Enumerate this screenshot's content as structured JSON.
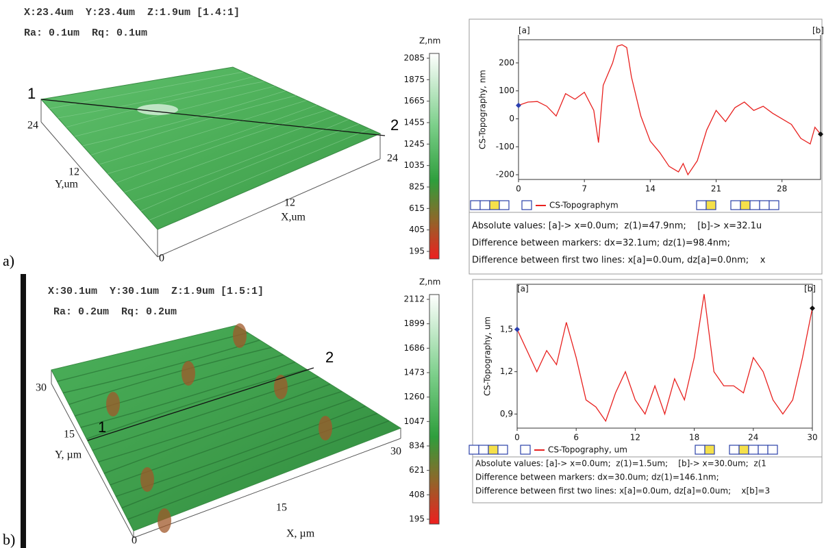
{
  "panels": [
    {
      "tag": "a)",
      "header": [
        "X:23.4um  Y:23.4um  Z:1.9um [1.4:1]",
        "Ra: 0.1um  Rq: 0.1um"
      ],
      "surface": {
        "labels": [
          "1",
          "2",
          "24",
          "12",
          "Y,um",
          "24",
          "12",
          "X,um",
          "0"
        ]
      },
      "colorbar": {
        "title": "Z,nm",
        "ticks": [
          2085,
          1875,
          1665,
          1455,
          1245,
          1035,
          825,
          615,
          405,
          195
        ]
      },
      "profile": {
        "type": "line",
        "color": "#e8201e",
        "marker_a": "[a]",
        "marker_b": "[b]",
        "ylabel": "CS-Topography, nm",
        "x": [
          0,
          1,
          2,
          3,
          4,
          5,
          6,
          7,
          8,
          8.5,
          9,
          10,
          10.5,
          11,
          11.5,
          12,
          13,
          14,
          15,
          16,
          17,
          17.5,
          18,
          19,
          20,
          21,
          22,
          23,
          24,
          25,
          26,
          27,
          28,
          29,
          30,
          31,
          31.5,
          32.1
        ],
        "values": [
          48,
          60,
          62,
          45,
          10,
          90,
          70,
          95,
          30,
          -85,
          120,
          200,
          260,
          265,
          255,
          150,
          10,
          -80,
          -120,
          -170,
          -190,
          -160,
          -200,
          -150,
          -40,
          30,
          -10,
          40,
          60,
          30,
          45,
          20,
          0,
          -20,
          -70,
          -90,
          -30,
          -55
        ],
        "xlim": [
          0,
          32.1
        ],
        "ylim": [
          -217,
          283
        ],
        "xticks": [
          0,
          7,
          14,
          21,
          28
        ],
        "yticks": [
          200,
          100,
          0,
          -100,
          -200
        ],
        "legend": "CS-Topographym"
      },
      "info": [
        "Absolute values: [a]-> x=0.0um;  z(1)=47.9nm;    [b]-> x=32.1u",
        "Difference between markers: dx=32.1um; dz(1)=98.4nm;",
        "Difference between first two lines: x[a]=0.0um, dz[a]=0.0nm;    x"
      ]
    },
    {
      "tag": "b)",
      "header": [
        "X:30.1um  Y:30.1um  Z:1.9um [1.5:1]",
        "Ra: 0.2um  Rq: 0.2um"
      ],
      "surface": {
        "labels": [
          "2",
          "1",
          "30",
          "15",
          "Y, µm",
          "30",
          "15",
          "X, µm",
          "0"
        ]
      },
      "colorbar": {
        "title": "Z,nm",
        "ticks": [
          2112,
          1899,
          1686,
          1473,
          1260,
          1047,
          834,
          621,
          408,
          195
        ]
      },
      "profile": {
        "type": "line",
        "color": "#e8201e",
        "marker_a": "[a]",
        "marker_b": "[b]",
        "ylabel": "CS-Topography, um",
        "x": [
          0,
          1,
          2,
          3,
          4,
          5,
          6,
          7,
          8,
          9,
          10,
          11,
          12,
          13,
          14,
          15,
          16,
          17,
          18,
          19,
          20,
          21,
          22,
          23,
          24,
          25,
          26,
          27,
          28,
          29,
          30
        ],
        "values": [
          1.5,
          1.35,
          1.2,
          1.35,
          1.25,
          1.55,
          1.3,
          1.0,
          0.95,
          0.85,
          1.05,
          1.2,
          1.0,
          0.9,
          1.1,
          0.9,
          1.15,
          1.0,
          1.3,
          1.75,
          1.2,
          1.1,
          1.1,
          1.05,
          1.3,
          1.2,
          1.0,
          0.9,
          1.0,
          1.3,
          1.65
        ],
        "xlim": [
          0,
          30
        ],
        "ylim": [
          0.8,
          1.82
        ],
        "xticks": [
          0,
          6,
          12,
          18,
          24,
          30
        ],
        "yticks": [
          {
            "value": 1.5,
            "label": "1,5"
          },
          {
            "value": 1.2,
            "label": "1,2"
          },
          {
            "value": 0.9,
            "label": "0,9"
          }
        ],
        "legend": "CS-Topography, um"
      },
      "info": [
        "Absolute values: [a]-> x=0.0um;  z(1)=1.5um;    [b]-> x=30.0um;  z(1",
        "Difference between markers: dx=30.0um; dz(1)=146.1nm;",
        "Difference between first two lines: x[a]=0.0um, dz[a]=0.0um;    x[b]=3"
      ]
    }
  ]
}
